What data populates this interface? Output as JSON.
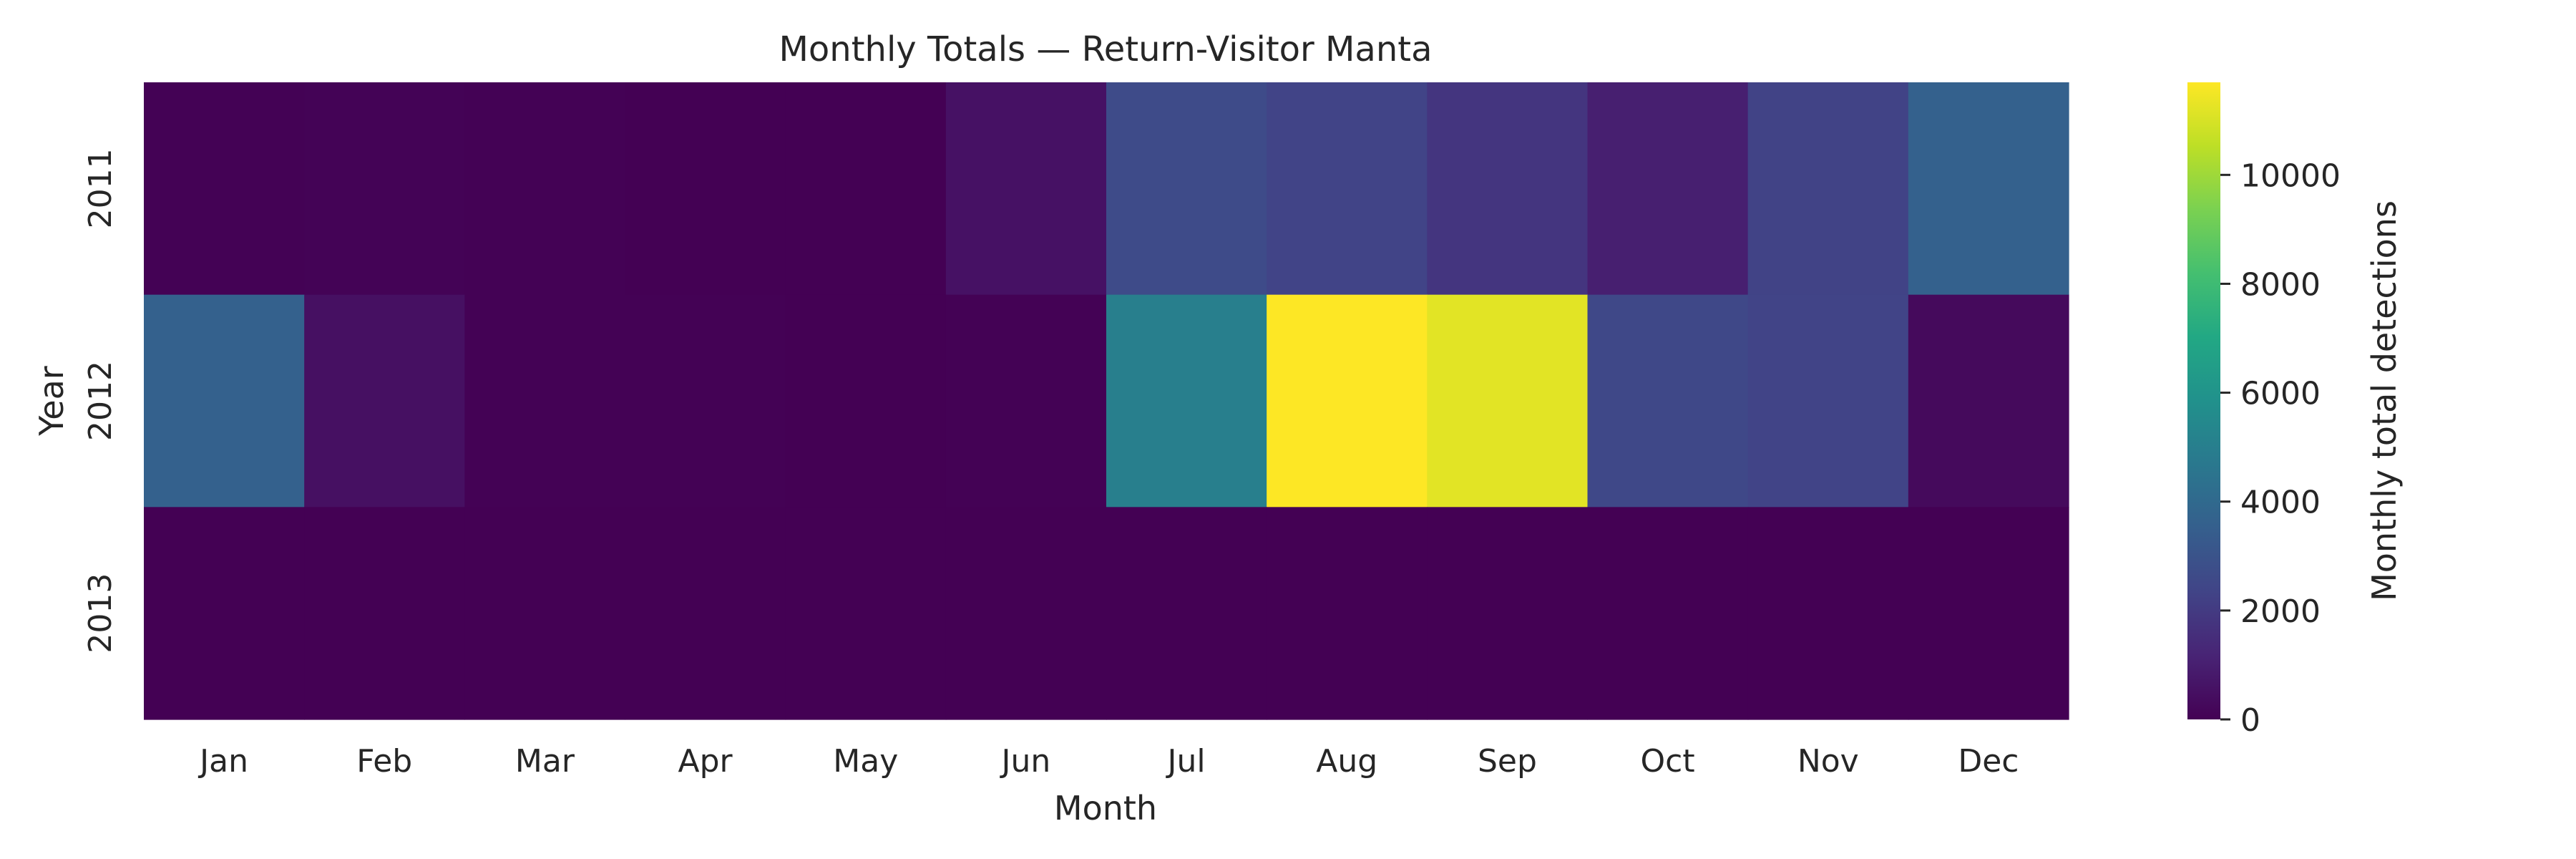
{
  "chart_data": {
    "type": "heatmap",
    "title": "Monthly Totals — Return-Visitor Manta",
    "xlabel": "Month",
    "ylabel": "Year",
    "x_categories": [
      "Jan",
      "Feb",
      "Mar",
      "Apr",
      "May",
      "Jun",
      "Jul",
      "Aug",
      "Sep",
      "Oct",
      "Nov",
      "Dec"
    ],
    "y_categories": [
      "2011",
      "2012",
      "2013"
    ],
    "values": [
      [
        20,
        80,
        30,
        10,
        0,
        550,
        2650,
        2350,
        1800,
        1000,
        2300,
        3600
      ],
      [
        3600,
        500,
        50,
        20,
        10,
        50,
        5000,
        11700,
        11200,
        2500,
        2350,
        300
      ],
      [
        0,
        0,
        0,
        0,
        0,
        0,
        0,
        0,
        0,
        0,
        0,
        0
      ]
    ],
    "colorbar": {
      "label": "Monthly total detections",
      "min": 0,
      "max": 11700,
      "ticks": [
        0,
        2000,
        4000,
        6000,
        8000,
        10000
      ],
      "colormap": "viridis"
    },
    "grid": false,
    "legend": "none"
  }
}
